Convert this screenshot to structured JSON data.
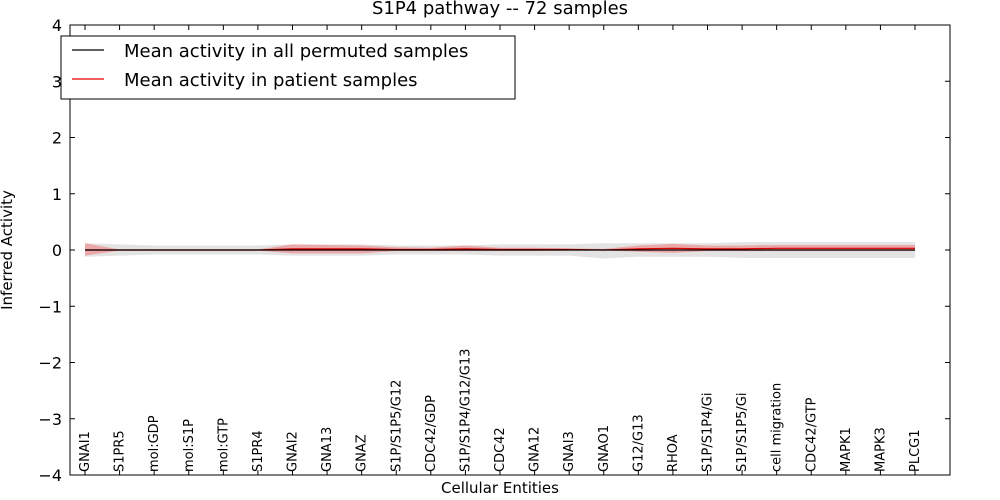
{
  "chart_data": {
    "type": "line",
    "title": "S1P4 pathway -- 72 samples",
    "xlabel": "Cellular Entities",
    "ylabel": "Inferred Activity",
    "ylim": [
      -4,
      4
    ],
    "yticks": [
      4,
      3,
      2,
      1,
      0,
      -1,
      -2,
      -3,
      -4
    ],
    "ytick_labels": [
      "4",
      "3",
      "2",
      "1",
      "0",
      "−1",
      "−2",
      "−3",
      "−4"
    ],
    "legend_position": "top-left",
    "categories": [
      "GNAI1",
      "S1PR5",
      "mol:GDP",
      "mol:S1P",
      "mol:GTP",
      "S1PR4",
      "GNAI2",
      "GNA13",
      "GNAZ",
      "S1P/S1P5/G12",
      "CDC42/GDP",
      "S1P/S1P4/G12/G13",
      "CDC42",
      "GNA12",
      "GNAI3",
      "GNAO1",
      "G12/G13",
      "RHOA",
      "S1P/S1P4/Gi",
      "S1P/S1P5/Gi",
      "cell migration",
      "CDC42/GTP",
      "MAPK1",
      "MAPK3",
      "PLCG1"
    ],
    "series": [
      {
        "name": "Mean activity in all permuted samples",
        "color": "#000000",
        "values": [
          0,
          0,
          0,
          0,
          0,
          0,
          0,
          0,
          0,
          0,
          0,
          0,
          0,
          0,
          0,
          0,
          0,
          0,
          0,
          0,
          0,
          0,
          0,
          0,
          0
        ],
        "band_lower": [
          -0.12,
          -0.1,
          -0.08,
          -0.08,
          -0.08,
          -0.08,
          -0.1,
          -0.1,
          -0.1,
          -0.08,
          -0.08,
          -0.08,
          -0.1,
          -0.1,
          -0.1,
          -0.15,
          -0.12,
          -0.12,
          -0.12,
          -0.14,
          -0.14,
          -0.14,
          -0.14,
          -0.14,
          -0.14
        ],
        "band_upper": [
          0.12,
          0.1,
          0.08,
          0.08,
          0.08,
          0.08,
          0.1,
          0.1,
          0.1,
          0.08,
          0.08,
          0.08,
          0.1,
          0.1,
          0.1,
          0.12,
          0.12,
          0.12,
          0.12,
          0.14,
          0.14,
          0.14,
          0.14,
          0.14,
          0.14
        ],
        "band_color": "#cccccc"
      },
      {
        "name": "Mean activity in patient samples",
        "color": "#e00000",
        "values": [
          0,
          0,
          0,
          0,
          0,
          0,
          0.02,
          0.02,
          0.02,
          0.01,
          0.01,
          0.02,
          0.01,
          0.01,
          0.01,
          0,
          0.02,
          0.03,
          0.02,
          0.02,
          0.03,
          0.03,
          0.03,
          0.03,
          0.03
        ],
        "band_lower": [
          -0.1,
          -0.01,
          -0.01,
          -0.01,
          -0.01,
          -0.01,
          -0.06,
          -0.06,
          -0.06,
          -0.02,
          -0.02,
          -0.02,
          -0.02,
          -0.02,
          -0.01,
          -0.01,
          -0.03,
          -0.05,
          -0.02,
          -0.02,
          -0.02,
          -0.02,
          -0.02,
          -0.02,
          -0.02
        ],
        "band_upper": [
          0.12,
          0.01,
          0.01,
          0.01,
          0.01,
          0.01,
          0.1,
          0.09,
          0.08,
          0.05,
          0.04,
          0.08,
          0.04,
          0.04,
          0.03,
          0.02,
          0.08,
          0.11,
          0.08,
          0.08,
          0.09,
          0.09,
          0.09,
          0.09,
          0.09
        ],
        "band_color": "#f08080"
      }
    ]
  }
}
